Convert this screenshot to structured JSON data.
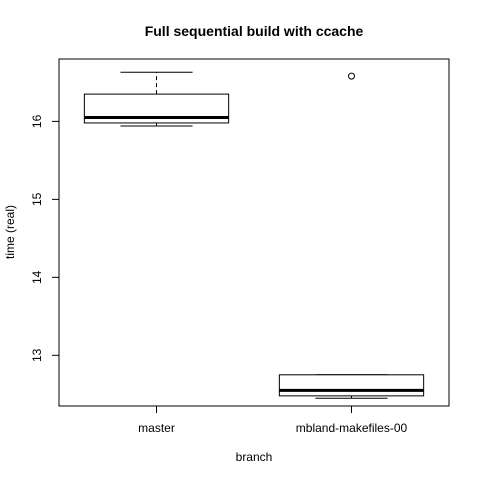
{
  "chart_data": {
    "type": "boxplot",
    "title": "Full sequential build with ccache",
    "xlabel": "branch",
    "ylabel": "time (real)",
    "ylim": [
      12.35,
      16.8
    ],
    "y_ticks": [
      13,
      14,
      15,
      16
    ],
    "grid": false,
    "categories": [
      "master",
      "mbland-makefiles-00"
    ],
    "boxes": [
      {
        "category": "master",
        "whisker_low": 15.94,
        "q1": 15.98,
        "median": 16.05,
        "q3": 16.35,
        "whisker_high": 16.63,
        "outliers": []
      },
      {
        "category": "mbland-makefiles-00",
        "whisker_low": 12.45,
        "q1": 12.48,
        "median": 12.55,
        "q3": 12.75,
        "whisker_high": 12.75,
        "outliers": [
          16.58
        ]
      }
    ]
  }
}
